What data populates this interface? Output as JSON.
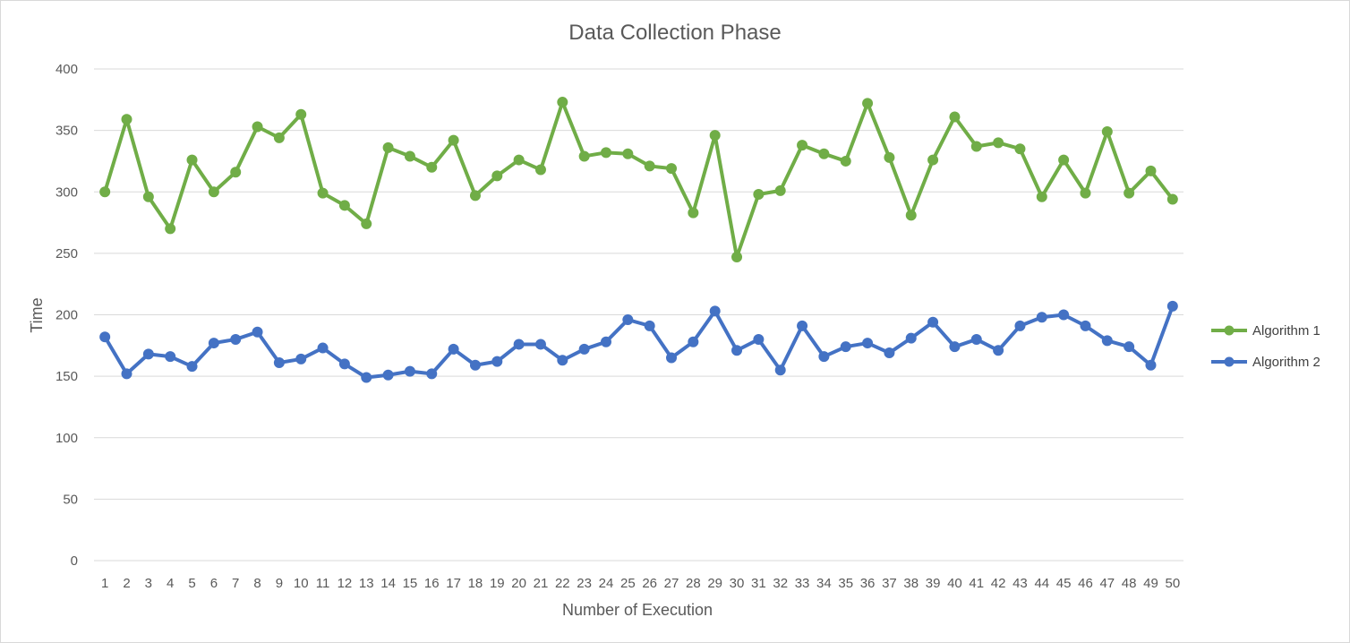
{
  "chart_data": {
    "type": "line",
    "title": "Data Collection Phase",
    "xlabel": "Number of Execution",
    "ylabel": "Time",
    "ylim": [
      0,
      400
    ],
    "yticks": [
      0,
      50,
      100,
      150,
      200,
      250,
      300,
      350,
      400
    ],
    "grid": true,
    "legend_position": "right",
    "categories": [
      "1",
      "2",
      "3",
      "4",
      "5",
      "6",
      "7",
      "8",
      "9",
      "10",
      "11",
      "12",
      "13",
      "14",
      "15",
      "16",
      "17",
      "18",
      "19",
      "20",
      "21",
      "22",
      "23",
      "24",
      "25",
      "26",
      "27",
      "28",
      "29",
      "30",
      "31",
      "32",
      "33",
      "34",
      "35",
      "36",
      "37",
      "38",
      "39",
      "40",
      "41",
      "42",
      "43",
      "44",
      "45",
      "46",
      "47",
      "48",
      "49",
      "50"
    ],
    "series": [
      {
        "name": "Algorithm 1",
        "color": "#70ad47",
        "values": [
          300,
          359,
          296,
          270,
          326,
          300,
          316,
          353,
          344,
          363,
          299,
          289,
          274,
          336,
          329,
          320,
          342,
          297,
          313,
          326,
          318,
          373,
          329,
          332,
          331,
          321,
          319,
          283,
          346,
          247,
          298,
          301,
          338,
          331,
          325,
          372,
          328,
          281,
          326,
          361,
          337,
          340,
          335,
          296,
          326,
          299,
          349,
          299,
          317,
          294
        ]
      },
      {
        "name": "Algorithm 2",
        "color": "#4472c4",
        "values": [
          182,
          152,
          168,
          166,
          158,
          177,
          180,
          186,
          161,
          164,
          173,
          160,
          149,
          151,
          154,
          152,
          172,
          159,
          162,
          176,
          176,
          163,
          172,
          178,
          196,
          191,
          165,
          178,
          203,
          171,
          180,
          155,
          191,
          166,
          174,
          177,
          169,
          181,
          194,
          174,
          180,
          171,
          191,
          198,
          200,
          191,
          179,
          174,
          159,
          207
        ]
      }
    ]
  }
}
